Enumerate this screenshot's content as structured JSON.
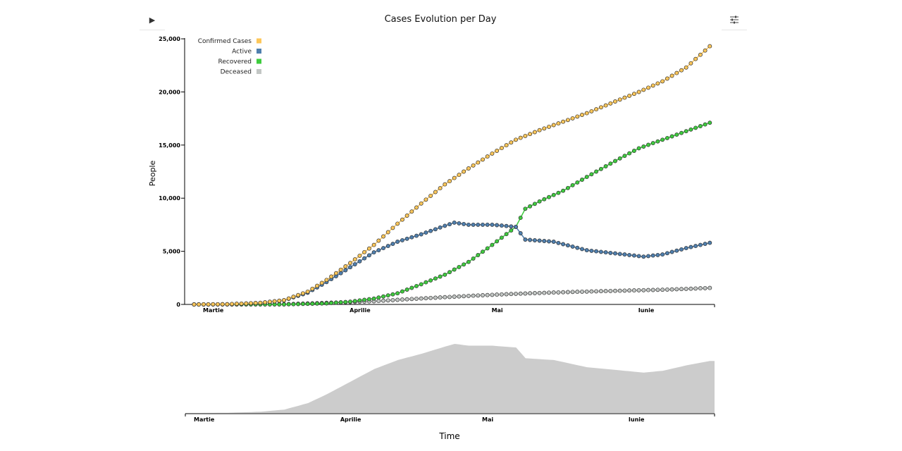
{
  "chart_data": [
    {
      "type": "line",
      "title": "Cases Evolution per Day",
      "ylabel": "People",
      "xlabel": "",
      "x_start": "2020-03-01",
      "x_end": "2020-06-21",
      "ylim": [
        0,
        26000
      ],
      "yticks": [
        "0",
        "5,000",
        "10,000",
        "15,000",
        "20,000",
        "25,000"
      ],
      "ytick_values": [
        0,
        5000,
        10000,
        15000,
        20000,
        25000
      ],
      "xticks": [
        {
          "date": "2020-03-01",
          "label": "Martie"
        },
        {
          "date": "2020-04-01",
          "label": "Aprilie"
        },
        {
          "date": "2020-05-01",
          "label": "Mai"
        },
        {
          "date": "2020-06-01",
          "label": "Iunie"
        }
      ],
      "legend_position": "top-left",
      "series": [
        {
          "name": "Confirmed Cases",
          "color": "#fdc75a",
          "points": [
            [
              "2020-03-03",
              0
            ],
            [
              "2020-03-10",
              20
            ],
            [
              "2020-03-17",
              150
            ],
            [
              "2020-03-22",
              400
            ],
            [
              "2020-03-27",
              1200
            ],
            [
              "2020-03-31",
              2300
            ],
            [
              "2020-04-05",
              3900
            ],
            [
              "2020-04-10",
              5600
            ],
            [
              "2020-04-15",
              7600
            ],
            [
              "2020-04-20",
              9500
            ],
            [
              "2020-04-25",
              11300
            ],
            [
              "2020-04-30",
              12800
            ],
            [
              "2020-05-05",
              14200
            ],
            [
              "2020-05-10",
              15500
            ],
            [
              "2020-05-15",
              16400
            ],
            [
              "2020-05-20",
              17200
            ],
            [
              "2020-05-25",
              18000
            ],
            [
              "2020-05-31",
              19100
            ],
            [
              "2020-06-05",
              20000
            ],
            [
              "2020-06-10",
              21000
            ],
            [
              "2020-06-15",
              22300
            ],
            [
              "2020-06-20",
              24300
            ]
          ]
        },
        {
          "name": "Active",
          "color": "#4f7fae",
          "points": [
            [
              "2020-03-03",
              0
            ],
            [
              "2020-03-10",
              20
            ],
            [
              "2020-03-17",
              140
            ],
            [
              "2020-03-22",
              380
            ],
            [
              "2020-03-27",
              1100
            ],
            [
              "2020-03-31",
              2100
            ],
            [
              "2020-04-05",
              3500
            ],
            [
              "2020-04-10",
              4900
            ],
            [
              "2020-04-15",
              5900
            ],
            [
              "2020-04-20",
              6600
            ],
            [
              "2020-04-25",
              7400
            ],
            [
              "2020-04-27",
              7700
            ],
            [
              "2020-04-30",
              7500
            ],
            [
              "2020-05-05",
              7500
            ],
            [
              "2020-05-10",
              7300
            ],
            [
              "2020-05-12",
              6100
            ],
            [
              "2020-05-18",
              5900
            ],
            [
              "2020-05-25",
              5100
            ],
            [
              "2020-05-31",
              4800
            ],
            [
              "2020-06-06",
              4500
            ],
            [
              "2020-06-10",
              4700
            ],
            [
              "2020-06-15",
              5300
            ],
            [
              "2020-06-20",
              5800
            ]
          ]
        },
        {
          "name": "Recovered",
          "color": "#3ecc3e",
          "points": [
            [
              "2020-03-03",
              0
            ],
            [
              "2020-03-22",
              0
            ],
            [
              "2020-03-31",
              100
            ],
            [
              "2020-04-05",
              260
            ],
            [
              "2020-04-10",
              550
            ],
            [
              "2020-04-15",
              1050
            ],
            [
              "2020-04-20",
              1900
            ],
            [
              "2020-04-25",
              2800
            ],
            [
              "2020-04-30",
              4000
            ],
            [
              "2020-05-05",
              5600
            ],
            [
              "2020-05-10",
              7300
            ],
            [
              "2020-05-12",
              9000
            ],
            [
              "2020-05-15",
              9700
            ],
            [
              "2020-05-20",
              10700
            ],
            [
              "2020-05-25",
              12000
            ],
            [
              "2020-05-31",
              13500
            ],
            [
              "2020-06-05",
              14700
            ],
            [
              "2020-06-10",
              15500
            ],
            [
              "2020-06-15",
              16300
            ],
            [
              "2020-06-20",
              17100
            ]
          ]
        },
        {
          "name": "Deceased",
          "color": "#c2c6c4",
          "points": [
            [
              "2020-03-03",
              0
            ],
            [
              "2020-03-22",
              20
            ],
            [
              "2020-03-31",
              150
            ],
            [
              "2020-04-10",
              300
            ],
            [
              "2020-04-20",
              560
            ],
            [
              "2020-04-30",
              800
            ],
            [
              "2020-05-10",
              1000
            ],
            [
              "2020-05-20",
              1150
            ],
            [
              "2020-05-31",
              1280
            ],
            [
              "2020-06-10",
              1380
            ],
            [
              "2020-06-20",
              1550
            ]
          ]
        }
      ]
    },
    {
      "type": "area",
      "title": "",
      "xlabel": "Time",
      "ylabel": "",
      "series_ref": "Active",
      "color": "#cccccc",
      "xticks": [
        {
          "date": "2020-03-01",
          "label": "Martie"
        },
        {
          "date": "2020-04-01",
          "label": "Aprilie"
        },
        {
          "date": "2020-05-01",
          "label": "Mai"
        },
        {
          "date": "2020-06-01",
          "label": "Iunie"
        }
      ]
    }
  ]
}
